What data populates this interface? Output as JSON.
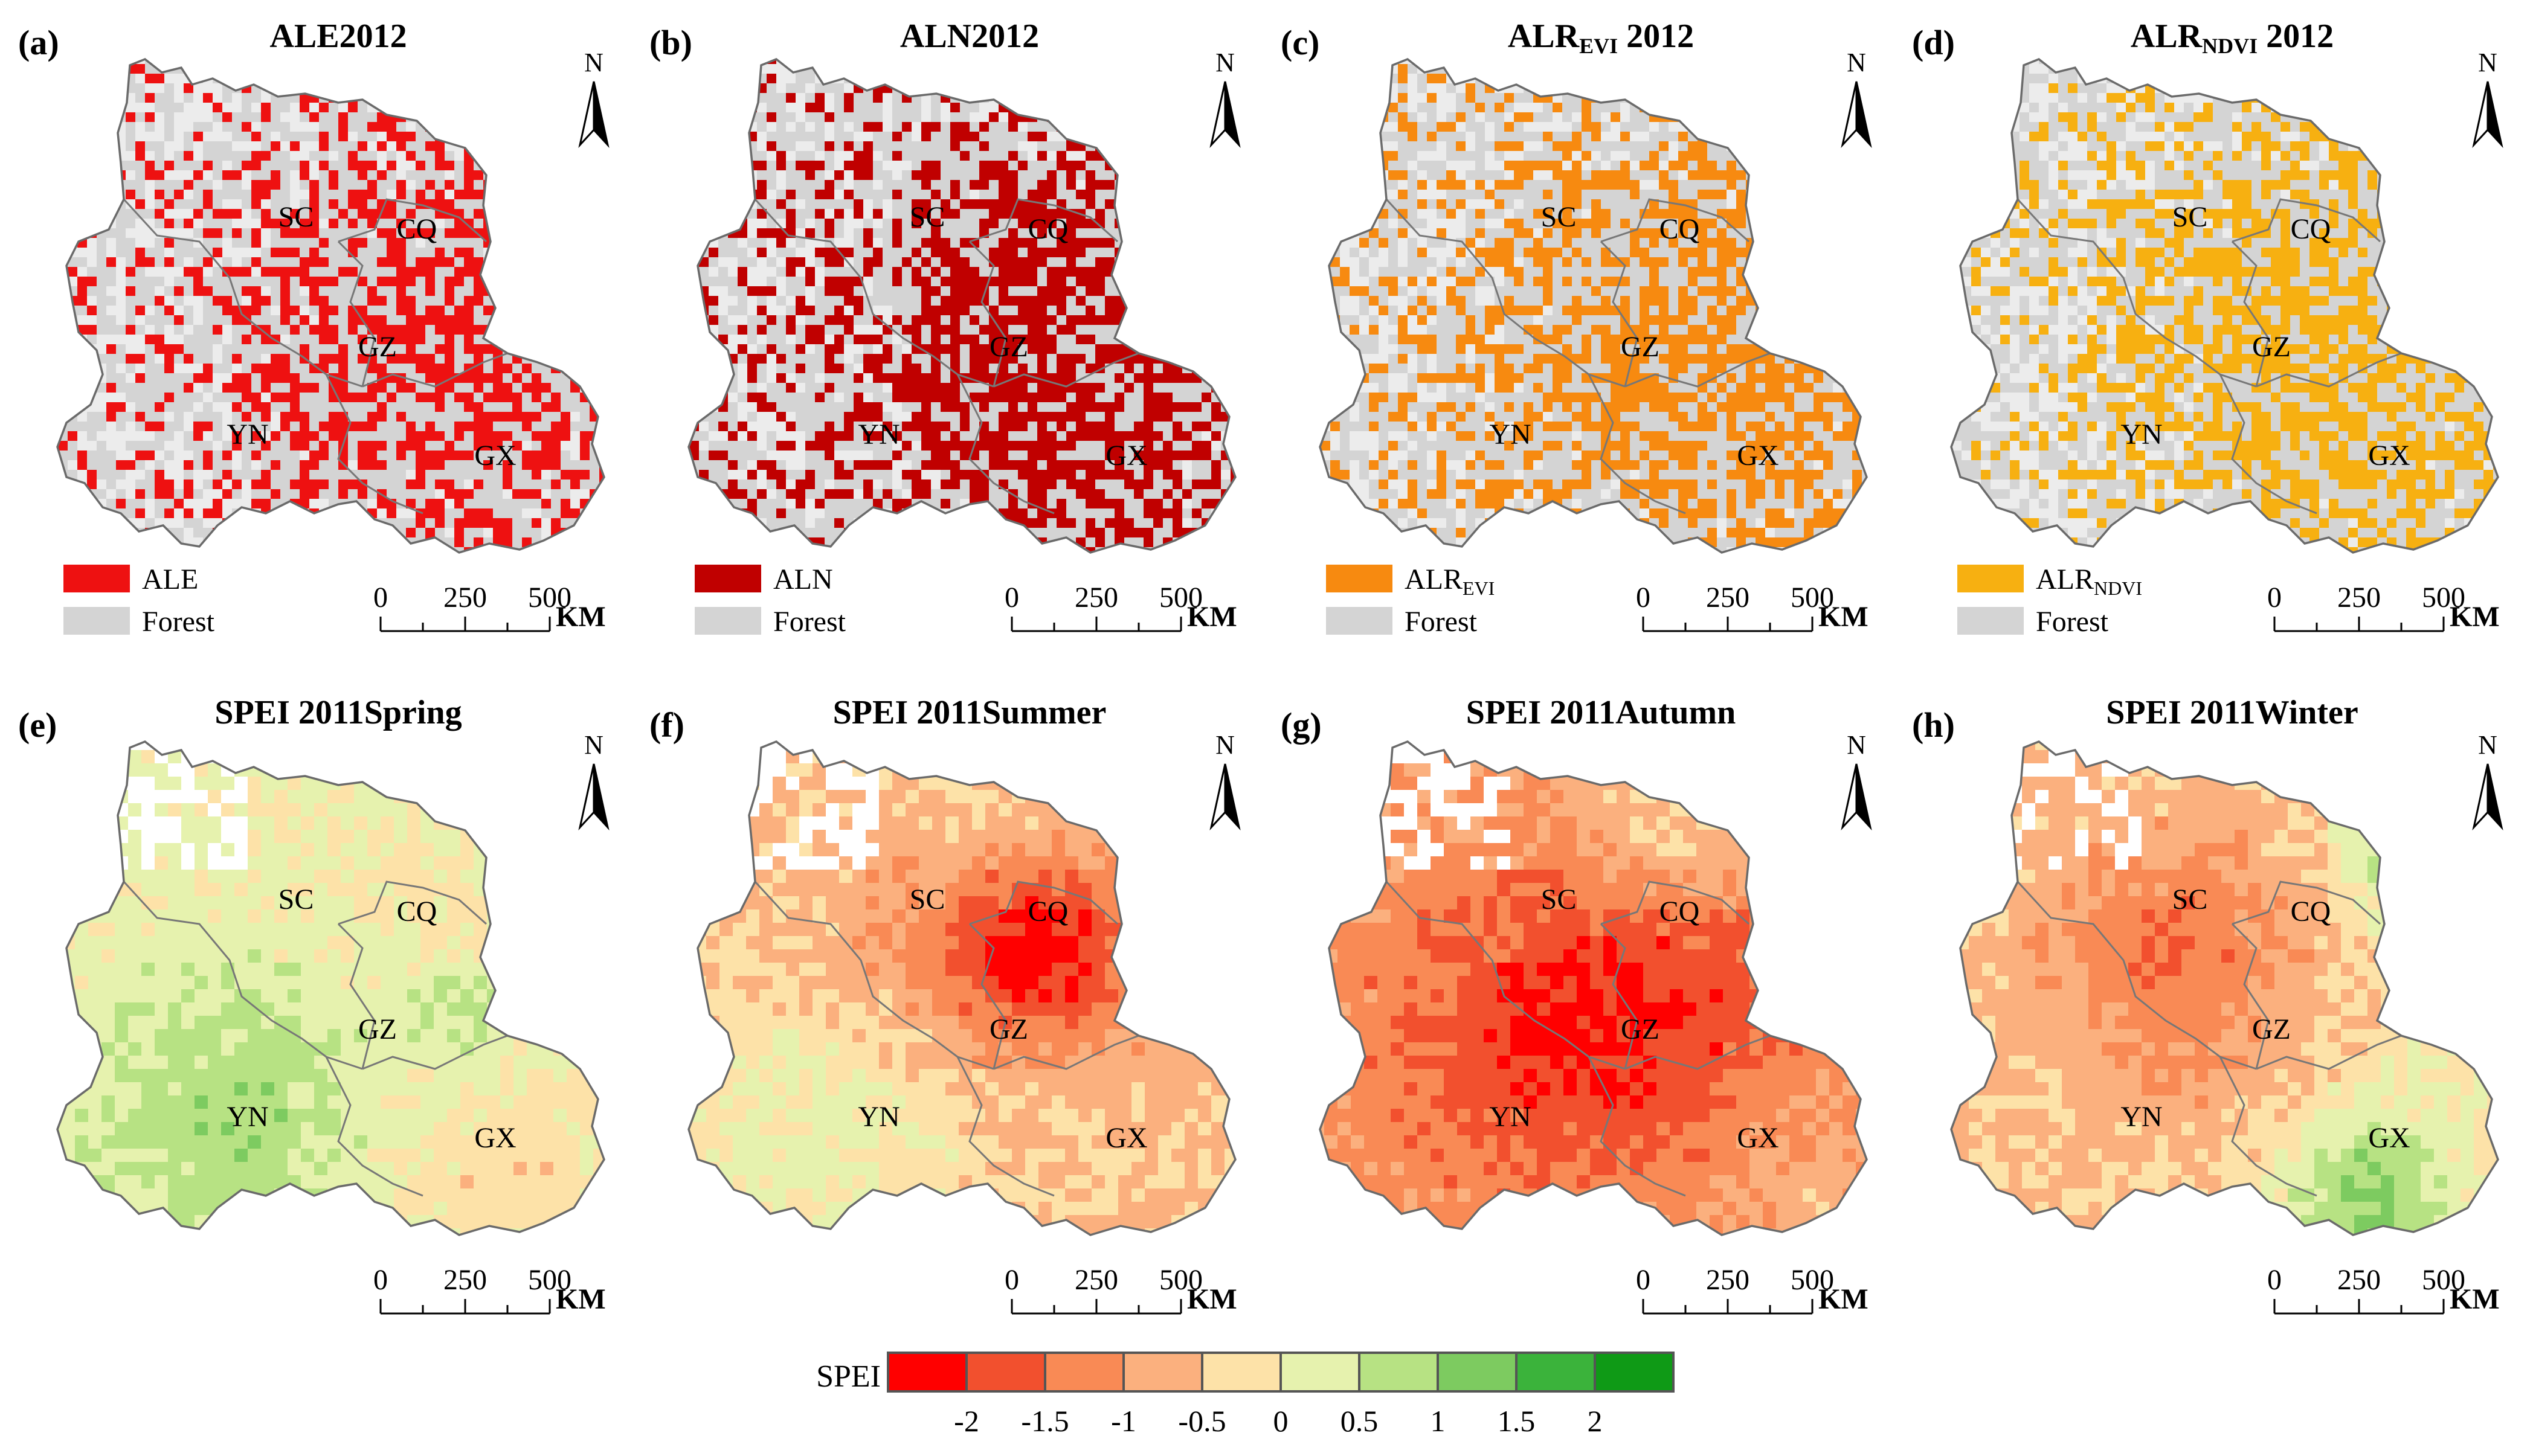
{
  "north_label": "N",
  "scale_bar": {
    "ticks": [
      "0",
      "250",
      "500"
    ],
    "unit": "KM"
  },
  "region_labels": [
    "SC",
    "CQ",
    "GZ",
    "YN",
    "GX"
  ],
  "forest_color": "#d4d4d4",
  "panels_top": [
    {
      "letter": "(a)",
      "title": "ALE2012",
      "title_sub": "",
      "title_after": "",
      "legend_main": "ALE",
      "legend_sub": "",
      "legend_forest": "Forest",
      "color": "#ee1111",
      "density": 0.45
    },
    {
      "letter": "(b)",
      "title": "ALN2012",
      "title_sub": "",
      "title_after": "",
      "legend_main": "ALN",
      "legend_sub": "",
      "legend_forest": "Forest",
      "color": "#c00000",
      "density": 0.55
    },
    {
      "letter": "(c)",
      "title": "ALR",
      "title_sub": "EVI",
      "title_after": " 2012",
      "legend_main": "ALR",
      "legend_sub": "EVI",
      "legend_forest": "Forest",
      "color": "#f78a10",
      "density": 0.5
    },
    {
      "letter": "(d)",
      "title": "ALR",
      "title_sub": "NDVI",
      "title_after": " 2012",
      "legend_main": "ALR",
      "legend_sub": "NDVI",
      "legend_forest": "Forest",
      "color": "#f7b011",
      "density": 0.5
    }
  ],
  "panels_bottom": [
    {
      "letter": "(e)",
      "title": "SPEI 2011Spring",
      "pattern": "spring"
    },
    {
      "letter": "(f)",
      "title": "SPEI 2011Summer",
      "pattern": "summer"
    },
    {
      "letter": "(g)",
      "title": "SPEI 2011Autumn",
      "pattern": "autumn"
    },
    {
      "letter": "(h)",
      "title": "SPEI 2011Winter",
      "pattern": "winter"
    }
  ],
  "spei_legend": {
    "label": "SPEI",
    "colors": [
      "#ff0000",
      "#f2502e",
      "#f98a55",
      "#fbb07e",
      "#fde2a8",
      "#e6f2ae",
      "#b7e283",
      "#7dcb60",
      "#3bb33b",
      "#0f9a16"
    ],
    "ticks": [
      "-2",
      "-1.5",
      "-1",
      "-0.5",
      "0",
      "0.5",
      "1",
      "1.5",
      "2"
    ]
  }
}
